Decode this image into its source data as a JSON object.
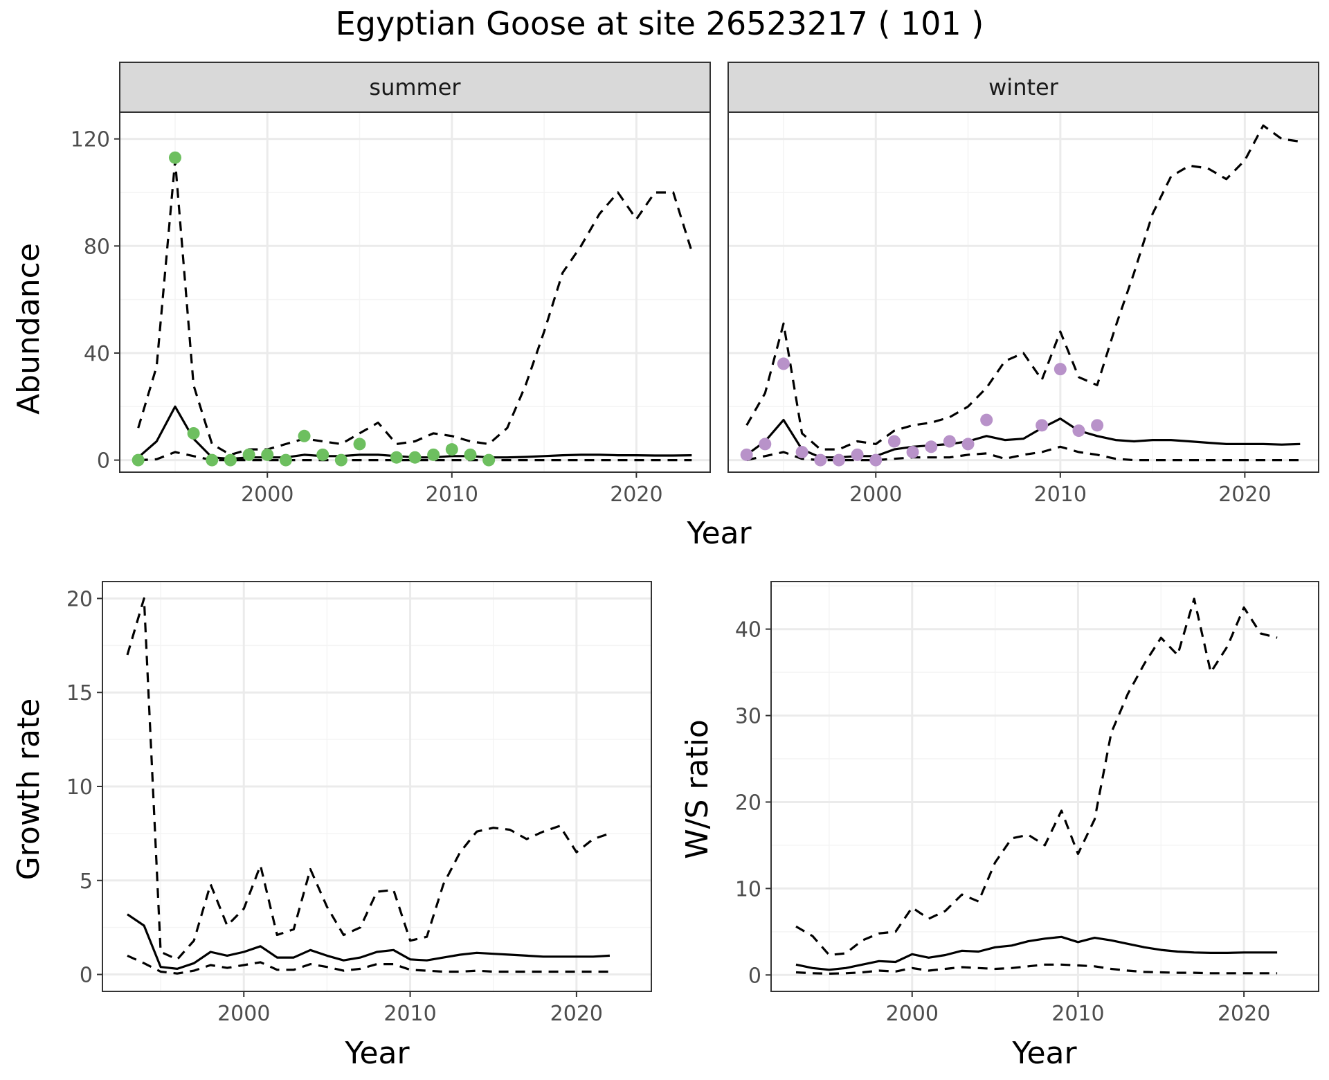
{
  "figure_title": "Egyptian Goose at site 26523217 ( 101 )",
  "colors": {
    "summer_points": "#6dbf5f",
    "winter_points": "#b892c9",
    "lines": "#000000",
    "strip_fill": "#d9d9d9",
    "grid_major": "#ebebeb",
    "grid_minor": "#f4f4f4",
    "tick_text": "#4d4d4d"
  },
  "chart_data": [
    {
      "type": "line",
      "facet": "summer",
      "xlabel": "Year",
      "ylabel": "Abundance",
      "xlim": [
        1992,
        2024
      ],
      "ylim": [
        -4.5,
        130
      ],
      "xticks": [
        2000,
        2010,
        2020
      ],
      "yticks": [
        0,
        40,
        80,
        120
      ],
      "grid": true,
      "x": [
        1993,
        1994,
        1995,
        1996,
        1997,
        1998,
        1999,
        2000,
        2001,
        2002,
        2003,
        2004,
        2005,
        2006,
        2007,
        2008,
        2009,
        2010,
        2011,
        2012,
        2013,
        2014,
        2015,
        2016,
        2017,
        2018,
        2019,
        2020,
        2021,
        2022,
        2023
      ],
      "series": [
        {
          "role": "fit",
          "style": "solid",
          "values": [
            1,
            7,
            20,
            8,
            1,
            0.5,
            1,
            1,
            1,
            2,
            1.5,
            1.5,
            2,
            2,
            1.5,
            1,
            1,
            1.5,
            1.5,
            1,
            1,
            1.2,
            1.5,
            1.8,
            2,
            2,
            1.8,
            1.8,
            1.7,
            1.7,
            1.8
          ]
        },
        {
          "role": "upper",
          "style": "dashed",
          "values": [
            12,
            35,
            112,
            28,
            6,
            2,
            4,
            4,
            6,
            8,
            7,
            6,
            10,
            14,
            6,
            7,
            10,
            9,
            7,
            6,
            12,
            28,
            48,
            70,
            80,
            92,
            100,
            90,
            100,
            100,
            78
          ]
        },
        {
          "role": "lower",
          "style": "dashed",
          "values": [
            0,
            0.3,
            3,
            1.5,
            0,
            0,
            0,
            0,
            0,
            0,
            0,
            0,
            0,
            0,
            0,
            0,
            0,
            0,
            0,
            0,
            0,
            0,
            0,
            0,
            0,
            0,
            0,
            0,
            0,
            0,
            0
          ]
        }
      ],
      "observed": {
        "x": [
          1993,
          1995,
          1996,
          1997,
          1998,
          1999,
          2000,
          2001,
          2002,
          2003,
          2004,
          2005,
          2007,
          2008,
          2009,
          2010,
          2011,
          2012
        ],
        "y": [
          0,
          113,
          10,
          0,
          0,
          2,
          2,
          0,
          9,
          2,
          0,
          6,
          1,
          1,
          2,
          4,
          2,
          0
        ]
      }
    },
    {
      "type": "line",
      "facet": "winter",
      "xlabel": "Year",
      "ylabel": "Abundance",
      "xlim": [
        1992,
        2024
      ],
      "ylim": [
        -4.5,
        130
      ],
      "xticks": [
        2000,
        2010,
        2020
      ],
      "yticks": [
        0,
        40,
        80,
        120
      ],
      "grid": true,
      "x": [
        1993,
        1994,
        1995,
        1996,
        1997,
        1998,
        1999,
        2000,
        2001,
        2002,
        2003,
        2004,
        2005,
        2006,
        2007,
        2008,
        2009,
        2010,
        2011,
        2012,
        2013,
        2014,
        2015,
        2016,
        2017,
        2018,
        2019,
        2020,
        2021,
        2022,
        2023
      ],
      "series": [
        {
          "role": "fit",
          "style": "solid",
          "values": [
            2,
            7,
            15,
            4,
            1,
            1,
            1.5,
            1.5,
            4,
            5,
            5.5,
            6,
            7,
            9,
            7.5,
            8,
            12,
            15.5,
            11,
            9,
            7.5,
            7,
            7.5,
            7.5,
            7,
            6.5,
            6,
            6,
            6,
            5.8,
            6
          ]
        },
        {
          "role": "upper",
          "style": "dashed",
          "values": [
            13,
            25,
            51,
            10,
            4,
            4,
            7,
            6,
            11,
            13,
            14,
            16,
            20,
            27,
            37,
            40,
            30,
            48,
            31,
            28,
            50,
            70,
            92,
            106,
            110,
            109,
            105,
            112,
            125,
            120,
            119
          ]
        },
        {
          "role": "lower",
          "style": "dashed",
          "values": [
            0,
            1.5,
            3,
            0.5,
            0,
            0,
            0,
            0,
            0.5,
            1,
            1,
            1,
            2,
            2.5,
            0.5,
            2,
            3,
            5,
            3,
            2,
            0.5,
            0,
            0,
            0,
            0,
            0,
            0,
            0,
            0,
            0,
            0
          ]
        }
      ],
      "observed": {
        "x": [
          1993,
          1994,
          1995,
          1996,
          1997,
          1998,
          1999,
          2000,
          2001,
          2002,
          2003,
          2004,
          2005,
          2006,
          2009,
          2010,
          2011,
          2012
        ],
        "y": [
          2,
          6,
          36,
          3,
          0,
          0,
          2,
          0,
          7,
          3,
          5,
          7,
          6,
          15,
          13,
          34,
          11,
          13
        ]
      }
    },
    {
      "type": "line",
      "xlabel": "Year",
      "ylabel": "Growth rate",
      "xlim": [
        1991.5,
        2024.5
      ],
      "ylim": [
        -0.9,
        20.9
      ],
      "xticks": [
        2000,
        2010,
        2020
      ],
      "yticks": [
        0,
        5,
        10,
        15,
        20
      ],
      "grid": true,
      "x": [
        1993,
        1994,
        1995,
        1996,
        1997,
        1998,
        1999,
        2000,
        2001,
        2002,
        2003,
        2004,
        2005,
        2006,
        2007,
        2008,
        2009,
        2010,
        2011,
        2012,
        2013,
        2014,
        2015,
        2016,
        2017,
        2018,
        2019,
        2020,
        2021,
        2022
      ],
      "series": [
        {
          "role": "fit",
          "style": "solid",
          "values": [
            3.2,
            2.6,
            0.4,
            0.3,
            0.6,
            1.2,
            1,
            1.2,
            1.5,
            0.9,
            0.9,
            1.3,
            1,
            0.75,
            0.9,
            1.2,
            1.3,
            0.8,
            0.75,
            0.9,
            1.05,
            1.15,
            1.1,
            1.05,
            1,
            0.95,
            0.95,
            0.95,
            0.95,
            1
          ]
        },
        {
          "role": "upper",
          "style": "dashed",
          "values": [
            17,
            20,
            1.2,
            0.8,
            1.8,
            4.8,
            2.6,
            3.5,
            5.8,
            2.1,
            2.4,
            5.6,
            3.6,
            2.1,
            2.5,
            4.4,
            4.5,
            1.8,
            2,
            4.8,
            6.5,
            7.6,
            7.8,
            7.7,
            7.2,
            7.6,
            7.9,
            6.5,
            7.2,
            7.5
          ]
        },
        {
          "role": "lower",
          "style": "dashed",
          "values": [
            1,
            0.6,
            0.15,
            0.05,
            0.2,
            0.5,
            0.35,
            0.5,
            0.65,
            0.25,
            0.25,
            0.55,
            0.4,
            0.2,
            0.3,
            0.55,
            0.55,
            0.25,
            0.2,
            0.15,
            0.15,
            0.2,
            0.15,
            0.15,
            0.15,
            0.15,
            0.15,
            0.15,
            0.15,
            0.15
          ]
        }
      ]
    },
    {
      "type": "line",
      "xlabel": "Year",
      "ylabel": "W/S ratio",
      "xlim": [
        1991.5,
        2024.5
      ],
      "ylim": [
        -1.9,
        45.5
      ],
      "xticks": [
        2000,
        2010,
        2020
      ],
      "yticks": [
        0,
        10,
        20,
        30,
        40
      ],
      "grid": true,
      "x": [
        1993,
        1994,
        1995,
        1996,
        1997,
        1998,
        1999,
        2000,
        2001,
        2002,
        2003,
        2004,
        2005,
        2006,
        2007,
        2008,
        2009,
        2010,
        2011,
        2012,
        2013,
        2014,
        2015,
        2016,
        2017,
        2018,
        2019,
        2020,
        2021,
        2022
      ],
      "series": [
        {
          "role": "fit",
          "style": "solid",
          "values": [
            1.2,
            0.8,
            0.6,
            0.8,
            1.2,
            1.6,
            1.5,
            2.4,
            2,
            2.3,
            2.8,
            2.7,
            3.2,
            3.4,
            3.9,
            4.2,
            4.4,
            3.8,
            4.3,
            4,
            3.6,
            3.2,
            2.9,
            2.7,
            2.6,
            2.55,
            2.55,
            2.6,
            2.6,
            2.6
          ]
        },
        {
          "role": "upper",
          "style": "dashed",
          "values": [
            5.6,
            4.5,
            2.3,
            2.5,
            4,
            4.8,
            5,
            7.8,
            6.5,
            7.4,
            9.3,
            8.5,
            13,
            15.8,
            16.2,
            15,
            19,
            14,
            18,
            28,
            32.5,
            36,
            39,
            37,
            43.5,
            35,
            38,
            42.5,
            39.5,
            39
          ]
        },
        {
          "role": "lower",
          "style": "dashed",
          "values": [
            0.3,
            0.2,
            0.15,
            0.2,
            0.3,
            0.5,
            0.4,
            0.8,
            0.5,
            0.7,
            0.9,
            0.8,
            0.7,
            0.8,
            1,
            1.2,
            1.2,
            1.1,
            1,
            0.7,
            0.5,
            0.35,
            0.3,
            0.25,
            0.25,
            0.2,
            0.2,
            0.2,
            0.2,
            0.2
          ]
        }
      ]
    }
  ]
}
